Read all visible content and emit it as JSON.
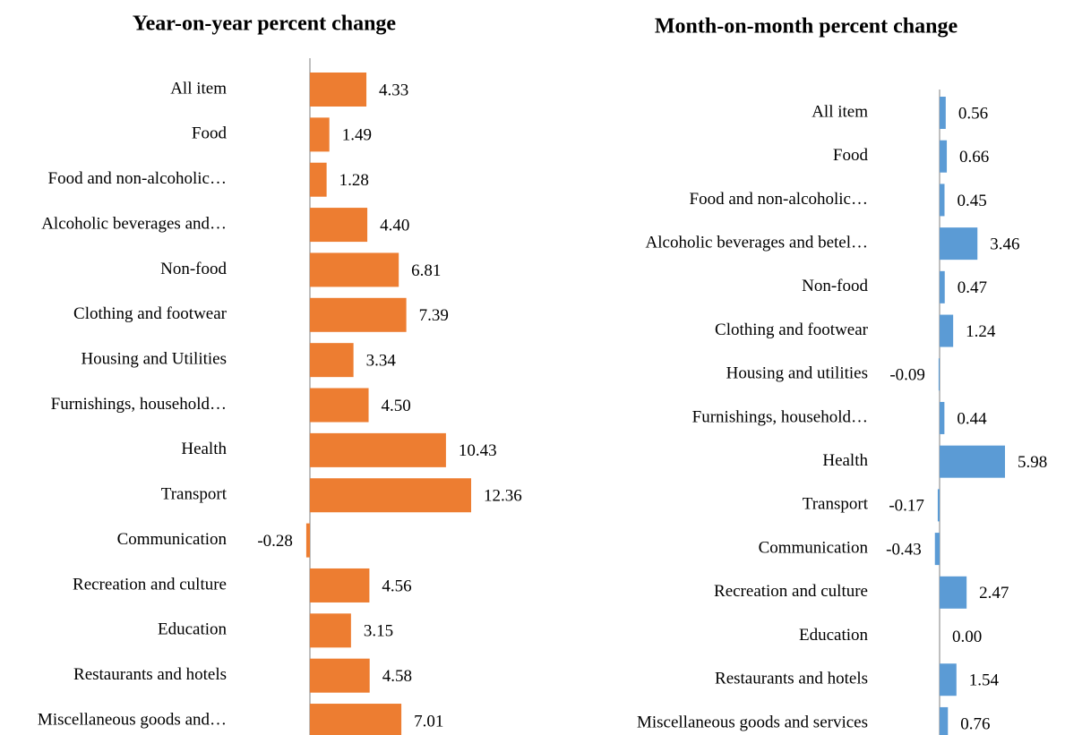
{
  "chart_data": [
    {
      "type": "bar",
      "orientation": "horizontal",
      "title": "Year-on-year percent change",
      "color": "#ed7d31",
      "categories": [
        "All item",
        "Food",
        "Food and non-alcoholic…",
        "Alcoholic beverages and…",
        "Non-food",
        "Clothing and footwear",
        "Housing and Utilities",
        "Furnishings, household…",
        "Health",
        "Transport",
        "Communication",
        "Recreation and culture",
        "Education",
        "Restaurants and hotels",
        "Miscellaneous goods and…"
      ],
      "values": [
        4.33,
        1.49,
        1.28,
        4.4,
        6.81,
        7.39,
        3.34,
        4.5,
        10.43,
        12.36,
        -0.28,
        4.56,
        3.15,
        4.58,
        7.01
      ],
      "value_labels": [
        "4.33",
        "1.49",
        "1.28",
        "4.40",
        "6.81",
        "7.39",
        "3.34",
        "4.50",
        "10.43",
        "12.36",
        "-0.28",
        "4.56",
        "3.15",
        "4.58",
        "7.01"
      ]
    },
    {
      "type": "bar",
      "orientation": "horizontal",
      "title": "Month-on-month percent change",
      "color": "#5b9bd5",
      "categories": [
        "All item",
        "Food",
        "Food and non-alcoholic…",
        "Alcoholic beverages and betel…",
        "Non-food",
        "Clothing and footwear",
        "Housing and utilities",
        "Furnishings, household…",
        "Health",
        "Transport",
        "Communication",
        "Recreation and culture",
        "Education",
        "Restaurants and hotels",
        "Miscellaneous goods and services"
      ],
      "values": [
        0.56,
        0.66,
        0.45,
        3.46,
        0.47,
        1.24,
        -0.09,
        0.44,
        5.98,
        -0.17,
        -0.43,
        2.47,
        0,
        1.54,
        0.76
      ],
      "value_labels": [
        "0.56",
        "0.66",
        "0.45",
        "3.46",
        "0.47",
        "1.24",
        "-0.09",
        "0.44",
        "5.98",
        "-0.17",
        "-0.43",
        "2.47",
        "0.00",
        "1.54",
        "0.76"
      ]
    }
  ]
}
